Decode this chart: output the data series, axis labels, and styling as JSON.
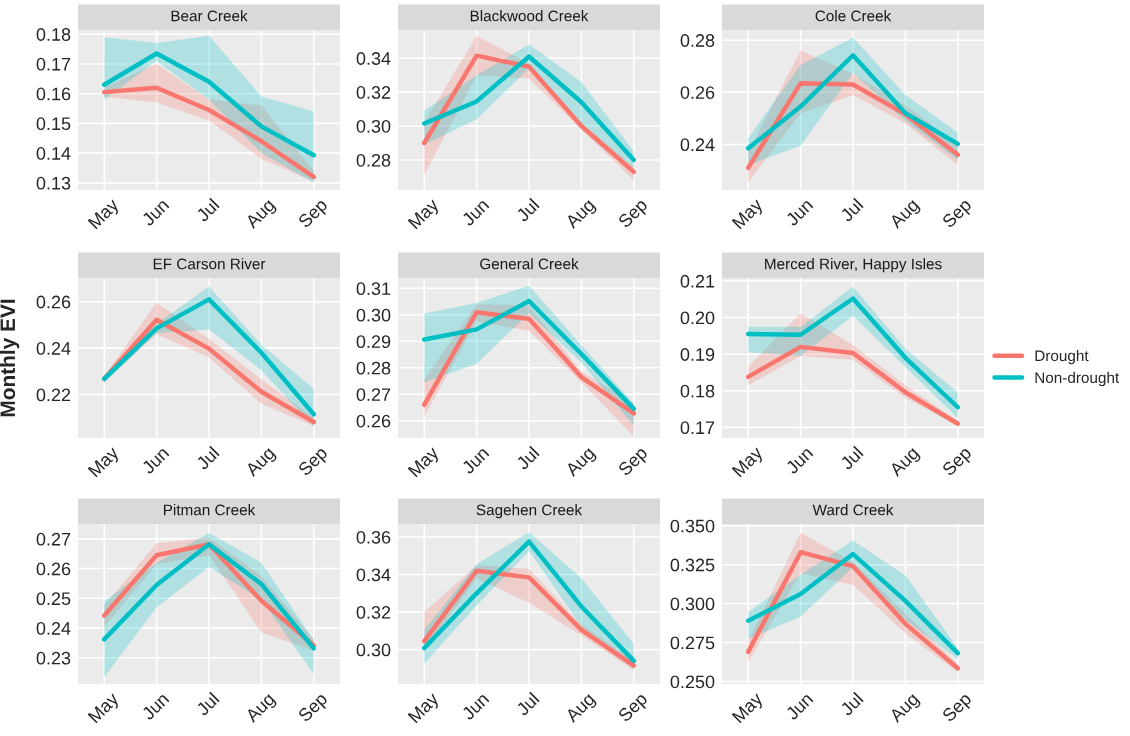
{
  "chart_data": [
    {
      "type": "line",
      "title": "Bear Creek",
      "categories": [
        "May",
        "Jun",
        "Jul",
        "Aug",
        "Sep"
      ],
      "ylim": [
        0.1276,
        0.1814
      ],
      "yticks": [
        0.13,
        0.14,
        0.15,
        0.16,
        0.17,
        0.18
      ],
      "grid": true,
      "legend": "right",
      "series": [
        {
          "name": "Drought",
          "color": "#f8766d",
          "values": [
            0.1605,
            0.162,
            0.1545,
            0.144,
            0.132
          ],
          "lower": [
            0.159,
            0.157,
            0.151,
            0.138,
            0.1305
          ],
          "upper": [
            0.162,
            0.17,
            0.158,
            0.156,
            0.134
          ]
        },
        {
          "name": "Non-drought",
          "color": "#00bfc4",
          "values": [
            0.163,
            0.1735,
            0.164,
            0.149,
            0.1393
          ],
          "lower": [
            0.158,
            0.171,
            0.158,
            0.14,
            0.13
          ],
          "upper": [
            0.179,
            0.177,
            0.1795,
            0.159,
            0.154
          ]
        }
      ]
    },
    {
      "type": "line",
      "title": "Blackwood Creek",
      "categories": [
        "May",
        "Jun",
        "Jul",
        "Aug",
        "Sep"
      ],
      "ylim": [
        0.2623,
        0.3566
      ],
      "yticks": [
        0.28,
        {
          "value": 0.3,
          "label": "0.30"
        },
        0.32,
        0.34
      ],
      "grid": true,
      "series": [
        {
          "color": "#f8766d",
          "values": [
            0.29,
            0.3415,
            0.335,
            0.3,
            0.273
          ],
          "lower": [
            0.271,
            0.33,
            0.328,
            0.298,
            0.268
          ],
          "upper": [
            0.302,
            0.353,
            0.337,
            0.302,
            0.276
          ]
        },
        {
          "color": "#00bfc4",
          "values": [
            0.3015,
            0.3145,
            0.341,
            0.314,
            0.28
          ],
          "lower": [
            0.289,
            0.304,
            0.334,
            0.302,
            0.275
          ],
          "upper": [
            0.309,
            0.33,
            0.348,
            0.326,
            0.285
          ]
        }
      ]
    },
    {
      "type": "line",
      "title": "Cole Creek",
      "categories": [
        "May",
        "Jun",
        "Jul",
        "Aug",
        "Sep"
      ],
      "ylim": [
        0.2225,
        0.2839
      ],
      "yticks": [
        0.24,
        0.26,
        0.28
      ],
      "grid": true,
      "series": [
        {
          "color": "#f8766d",
          "values": [
            0.231,
            0.2635,
            0.263,
            0.2515,
            0.236
          ],
          "lower": [
            0.2255,
            0.252,
            0.259,
            0.248,
            0.232
          ],
          "upper": [
            0.237,
            0.276,
            0.267,
            0.255,
            0.24
          ]
        },
        {
          "color": "#00bfc4",
          "values": [
            0.2385,
            0.2545,
            0.2742,
            0.252,
            0.2402
          ],
          "lower": [
            0.232,
            0.2395,
            0.2675,
            0.249,
            0.234
          ],
          "upper": [
            0.2425,
            0.2705,
            0.281,
            0.259,
            0.2445
          ]
        }
      ]
    },
    {
      "type": "line",
      "title": "EF Carson River",
      "ylabel": "Monthly EVI",
      "categories": [
        "May",
        "Jun",
        "Jul",
        "Aug",
        "Sep"
      ],
      "ylim": [
        0.2013,
        0.2702
      ],
      "yticks": [
        0.22,
        0.24,
        0.26
      ],
      "grid": true,
      "series": [
        {
          "color": "#f8766d",
          "values": [
            0.2268,
            0.2522,
            0.2398,
            0.2212,
            0.2082
          ],
          "lower": [
            0.2255,
            0.246,
            0.236,
            0.216,
            0.2065
          ],
          "upper": [
            0.228,
            0.2595,
            0.244,
            0.2265,
            0.21
          ]
        },
        {
          "color": "#00bfc4",
          "values": [
            0.2268,
            0.2485,
            0.261,
            0.238,
            0.2115
          ],
          "lower": [
            0.225,
            0.2465,
            0.248,
            0.2305,
            0.206
          ],
          "upper": [
            0.228,
            0.2505,
            0.2665,
            0.2415,
            0.2225
          ]
        }
      ]
    },
    {
      "type": "line",
      "title": "General Creek",
      "categories": [
        "May",
        "Jun",
        "Jul",
        "Aug",
        "Sep"
      ],
      "ylim": [
        0.2535,
        0.3139
      ],
      "yticks": [
        0.26,
        0.27,
        0.28,
        0.29,
        {
          "value": 0.3,
          "label": "0.30"
        },
        0.31
      ],
      "grid": true,
      "series": [
        {
          "color": "#f8766d",
          "values": [
            0.266,
            0.301,
            0.2985,
            0.2765,
            0.2628
          ],
          "lower": [
            0.2615,
            0.2975,
            0.294,
            0.2745,
            0.254
          ],
          "upper": [
            0.2755,
            0.304,
            0.3035,
            0.2785,
            0.2665
          ]
        },
        {
          "color": "#00bfc4",
          "values": [
            0.2907,
            0.2945,
            0.3052,
            0.2852,
            0.2645
          ],
          "lower": [
            0.2745,
            0.2815,
            0.3005,
            0.282,
            0.258
          ],
          "upper": [
            0.3005,
            0.3045,
            0.311,
            0.2885,
            0.2665
          ]
        }
      ]
    },
    {
      "type": "line",
      "title": "Merced River, Happy Isles",
      "categories": [
        "May",
        "Jun",
        "Jul",
        "Aug",
        "Sep"
      ],
      "ylim": [
        0.1671,
        0.2108
      ],
      "yticks": [
        0.17,
        0.18,
        0.19,
        {
          "value": 0.2,
          "label": "0.20"
        },
        0.21
      ],
      "grid": true,
      "series": [
        {
          "color": "#f8766d",
          "values": [
            0.1838,
            0.192,
            0.1903,
            0.1796,
            0.171
          ],
          "lower": [
            0.1815,
            0.1895,
            0.1885,
            0.178,
            0.1705
          ],
          "upper": [
            0.1865,
            0.2012,
            0.1925,
            0.1815,
            0.1718
          ]
        },
        {
          "color": "#00bfc4",
          "values": [
            0.1955,
            0.1953,
            0.2052,
            0.189,
            0.1755
          ],
          "lower": [
            0.1905,
            0.1895,
            0.2005,
            0.1865,
            0.1725
          ],
          "upper": [
            0.1975,
            0.1975,
            0.2085,
            0.1915,
            0.1795
          ]
        }
      ]
    },
    {
      "type": "line",
      "title": "Pitman Creek",
      "categories": [
        "May",
        "Jun",
        "Jul",
        "Aug",
        "Sep"
      ],
      "ylim": [
        0.2212,
        0.275
      ],
      "yticks": [
        0.23,
        0.24,
        0.25,
        0.26,
        0.27
      ],
      "grid": true,
      "series": [
        {
          "color": "#f8766d",
          "values": [
            0.2442,
            0.2645,
            0.2682,
            0.2492,
            0.2342
          ],
          "lower": [
            0.2405,
            0.2615,
            0.2645,
            0.2385,
            0.2325
          ],
          "upper": [
            0.2475,
            0.2685,
            0.2705,
            0.2575,
            0.236
          ]
        },
        {
          "color": "#00bfc4",
          "values": [
            0.2362,
            0.2545,
            0.2682,
            0.2548,
            0.2332
          ],
          "lower": [
            0.2235,
            0.247,
            0.2605,
            0.2495,
            0.2245
          ],
          "upper": [
            0.249,
            0.262,
            0.272,
            0.262,
            0.236
          ]
        }
      ]
    },
    {
      "type": "line",
      "title": "Sagehen Creek",
      "categories": [
        "May",
        "Jun",
        "Jul",
        "Aug",
        "Sep"
      ],
      "ylim": [
        0.2817,
        0.3669
      ],
      "yticks": [
        {
          "value": 0.3,
          "label": "0.30"
        },
        0.32,
        0.34,
        0.36
      ],
      "grid": true,
      "series": [
        {
          "color": "#f8766d",
          "values": [
            0.3045,
            0.342,
            0.3385,
            0.3105,
            0.2915
          ],
          "lower": [
            0.2995,
            0.338,
            0.325,
            0.3075,
            0.289
          ],
          "upper": [
            0.32,
            0.345,
            0.343,
            0.3135,
            0.294
          ]
        },
        {
          "color": "#00bfc4",
          "values": [
            0.3008,
            0.33,
            0.3575,
            0.323,
            0.294
          ],
          "lower": [
            0.2925,
            0.3235,
            0.3525,
            0.3125,
            0.2895
          ],
          "upper": [
            0.3105,
            0.3455,
            0.3625,
            0.338,
            0.303
          ]
        }
      ]
    },
    {
      "type": "line",
      "title": "Ward Creek",
      "categories": [
        "May",
        "Jun",
        "Jul",
        "Aug",
        "Sep"
      ],
      "ylim": [
        0.2484,
        0.3511
      ],
      "yticks": [
        {
          "value": 0.25,
          "label": "0.250"
        },
        {
          "value": 0.275,
          "label": "0.275"
        },
        {
          "value": 0.3,
          "label": "0.300"
        },
        {
          "value": 0.325,
          "label": "0.325"
        },
        {
          "value": 0.35,
          "label": "0.350"
        }
      ],
      "grid": true,
      "series": [
        {
          "color": "#f8766d",
          "values": [
            0.269,
            0.333,
            0.324,
            0.287,
            0.2585
          ],
          "lower": [
            0.2625,
            0.3195,
            0.312,
            0.281,
            0.256
          ],
          "upper": [
            0.2755,
            0.3455,
            0.3265,
            0.2935,
            0.261
          ]
        },
        {
          "color": "#00bfc4",
          "values": [
            0.289,
            0.3062,
            0.3318,
            0.3018,
            0.2682
          ],
          "lower": [
            0.2775,
            0.2915,
            0.3235,
            0.2895,
            0.2645
          ],
          "upper": [
            0.2945,
            0.3185,
            0.3405,
            0.318,
            0.2715
          ]
        }
      ]
    }
  ]
}
